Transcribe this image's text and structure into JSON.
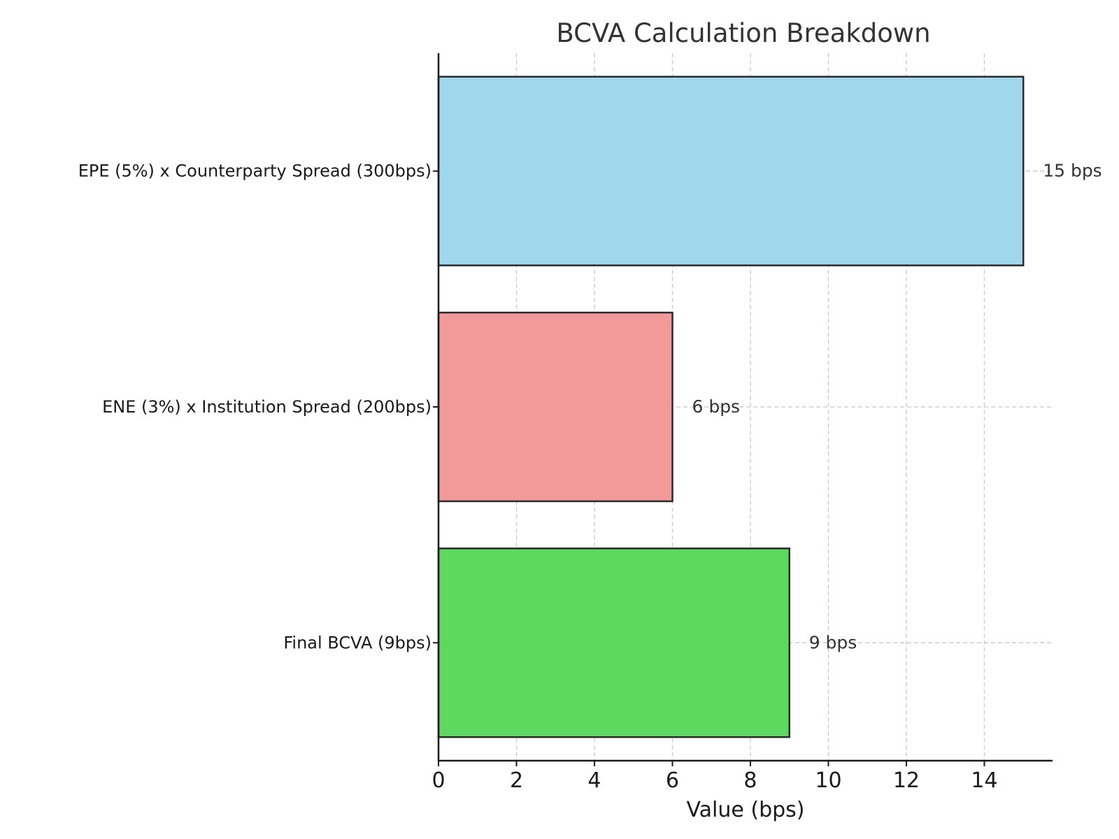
{
  "chart_data": {
    "type": "bar",
    "orientation": "horizontal",
    "title": "BCVA Calculation Breakdown",
    "xlabel": "Value (bps)",
    "ylabel": "",
    "xlim": [
      0,
      15.75
    ],
    "xticks": [
      0,
      2,
      4,
      6,
      8,
      10,
      12,
      14
    ],
    "grid": true,
    "categories": [
      "EPE (5%) x Counterparty Spread (300bps)",
      "ENE (3%) x Institution Spread (200bps)",
      "Final BCVA (9bps)"
    ],
    "values": [
      15,
      6,
      9
    ],
    "data_labels": [
      "15 bps",
      "6 bps",
      "9 bps"
    ],
    "colors": [
      "#a0d7ed",
      "#f29a9a",
      "#5dd95f"
    ]
  }
}
